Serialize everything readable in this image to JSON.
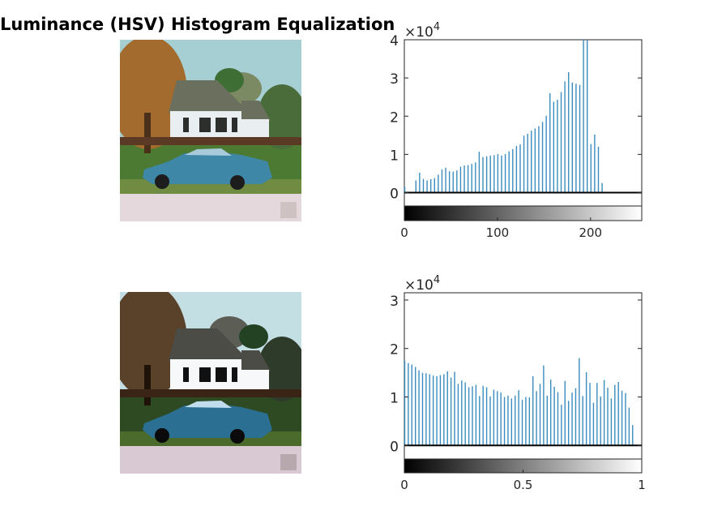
{
  "figure": {
    "title": "Luminance (HSV) Histogram Equalization"
  },
  "images": [
    {
      "tone": "original"
    },
    {
      "tone": "equalized"
    }
  ],
  "chart_data": [
    {
      "type": "bar",
      "subtype": "stem-histogram",
      "title": "",
      "xlabel": "",
      "ylabel": "",
      "exponent_label": "×10^4",
      "exponent_base": "×10",
      "exponent_power": "4",
      "xlim": [
        0,
        255
      ],
      "ylim": [
        -3500,
        40000
      ],
      "xticks": [
        0,
        100,
        200
      ],
      "yticks": [
        0,
        10000,
        20000,
        30000,
        40000
      ],
      "ytick_labels": [
        "0",
        "1",
        "2",
        "3",
        "4"
      ],
      "colorbar": "grayscale 0 to 255",
      "bar_color": "#3a8cbe",
      "x": [
        0,
        4,
        8,
        12,
        16,
        20,
        24,
        28,
        32,
        36,
        40,
        44,
        48,
        52,
        56,
        60,
        64,
        68,
        72,
        76,
        80,
        84,
        88,
        92,
        96,
        100,
        104,
        108,
        112,
        116,
        120,
        124,
        128,
        132,
        136,
        140,
        144,
        148,
        152,
        156,
        160,
        164,
        168,
        172,
        176,
        180,
        184,
        188,
        192,
        196,
        200,
        204,
        208,
        212,
        216,
        220,
        224,
        228,
        232,
        236,
        240,
        244,
        248,
        252
      ],
      "values": [
        1500,
        0,
        0,
        3200,
        5200,
        3600,
        3200,
        3500,
        3800,
        4700,
        6100,
        6500,
        5600,
        5500,
        5800,
        6800,
        7100,
        7200,
        7500,
        7900,
        10700,
        9300,
        9500,
        9700,
        9800,
        10100,
        9700,
        10100,
        10800,
        11400,
        12200,
        12600,
        14900,
        15400,
        16200,
        16800,
        17400,
        18500,
        20100,
        26000,
        23800,
        24300,
        26300,
        29100,
        31500,
        28800,
        28500,
        28200,
        41000,
        41000,
        12700,
        15200,
        12000,
        2500,
        0,
        0,
        0,
        0,
        0,
        0,
        0,
        0,
        0,
        0
      ]
    },
    {
      "type": "bar",
      "subtype": "stem-histogram",
      "title": "",
      "xlabel": "",
      "ylabel": "",
      "exponent_label": "×10^4",
      "exponent_base": "×10",
      "exponent_power": "4",
      "xlim": [
        0,
        1
      ],
      "ylim": [
        -2800,
        31500
      ],
      "xticks": [
        0,
        0.5,
        1
      ],
      "xtick_labels": [
        "0",
        "0.5",
        "1"
      ],
      "yticks": [
        0,
        10000,
        20000,
        30000
      ],
      "ytick_labels": [
        "0",
        "1",
        "2",
        "3"
      ],
      "colorbar": "grayscale 0 to 1",
      "bar_color": "#3a8cbe",
      "x": [
        0,
        0.015,
        0.03,
        0.045,
        0.06,
        0.075,
        0.09,
        0.105,
        0.12,
        0.135,
        0.15,
        0.165,
        0.18,
        0.195,
        0.21,
        0.225,
        0.24,
        0.255,
        0.27,
        0.285,
        0.3,
        0.315,
        0.33,
        0.345,
        0.36,
        0.375,
        0.39,
        0.405,
        0.42,
        0.435,
        0.45,
        0.465,
        0.48,
        0.495,
        0.51,
        0.525,
        0.54,
        0.555,
        0.57,
        0.585,
        0.6,
        0.615,
        0.63,
        0.645,
        0.66,
        0.675,
        0.69,
        0.705,
        0.72,
        0.735,
        0.75,
        0.765,
        0.78,
        0.795,
        0.81,
        0.825,
        0.84,
        0.855,
        0.87,
        0.885,
        0.9,
        0.915,
        0.93,
        0.945,
        0.96,
        0.975,
        0.99
      ],
      "values": [
        17500,
        17000,
        16700,
        16200,
        15500,
        15000,
        14900,
        14700,
        14400,
        14300,
        14500,
        14700,
        15300,
        14000,
        15200,
        12700,
        13400,
        13000,
        12000,
        12200,
        12500,
        10200,
        12300,
        12000,
        10100,
        11500,
        11200,
        10900,
        10000,
        10300,
        9700,
        10300,
        11400,
        9400,
        10000,
        9900,
        14300,
        11200,
        12700,
        16500,
        10300,
        13600,
        12100,
        11000,
        8400,
        13300,
        9200,
        10900,
        11800,
        18000,
        10200,
        15100,
        12900,
        8800,
        12900,
        10100,
        13500,
        11900,
        9700,
        12500,
        13100,
        11300,
        10800,
        7800,
        4200,
        0,
        0
      ]
    }
  ]
}
